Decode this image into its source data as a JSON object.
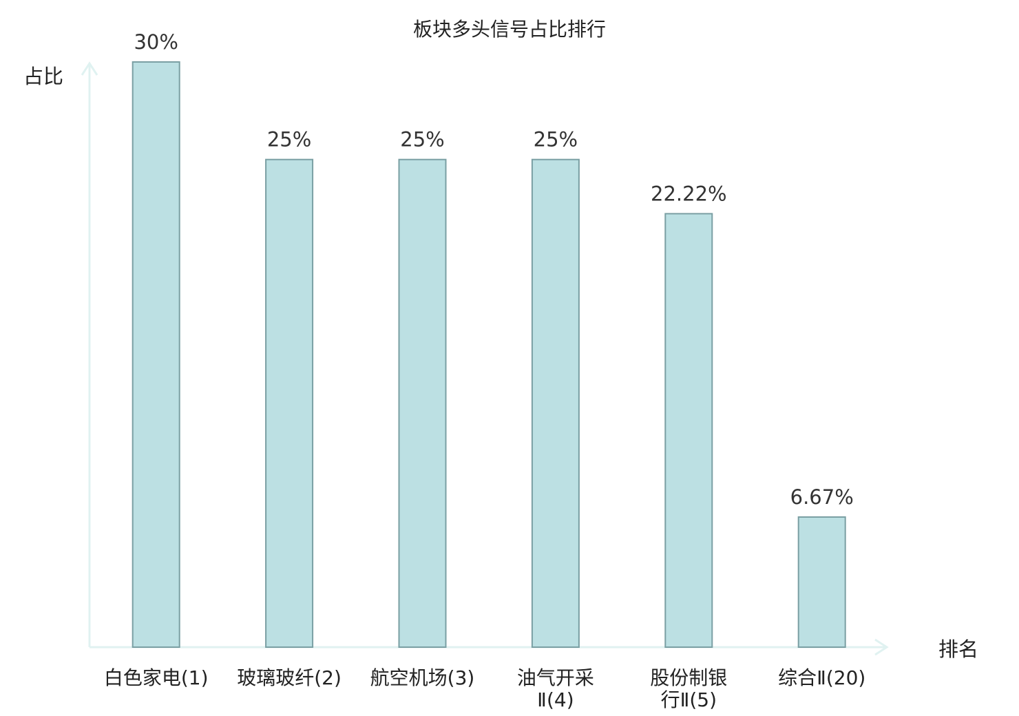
{
  "chart_data": {
    "type": "bar",
    "title": "板块多头信号占比排行",
    "xlabel": "排名",
    "ylabel": "占比",
    "ylim": [
      0,
      30
    ],
    "categories": [
      [
        "白色家电(1)"
      ],
      [
        "玻璃玻纤(2)"
      ],
      [
        "航空机场(3)"
      ],
      [
        "油气开采",
        "Ⅱ(4)"
      ],
      [
        "股份制银",
        "行Ⅱ(5)"
      ],
      [
        "综合Ⅱ(20)"
      ]
    ],
    "values": [
      30,
      25,
      25,
      25,
      22.22,
      6.67
    ],
    "value_labels": [
      "30%",
      "25%",
      "25%",
      "25%",
      "22.22%",
      "6.67%"
    ],
    "highlighted_category_index": 5,
    "colors": {
      "bar_fill": "#bce0e3",
      "bar_stroke": "#7a9fa3",
      "axis": "#e0f2f1",
      "highlight_label": "#e02020",
      "text": "#222222"
    }
  }
}
